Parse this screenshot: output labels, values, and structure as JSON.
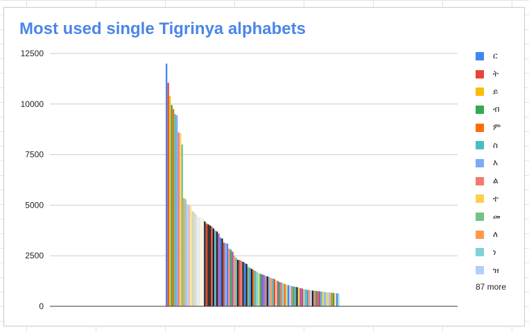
{
  "chart_data": {
    "type": "bar",
    "title": "Most used single Tigrinya alphabets",
    "xlabel": "",
    "ylabel": "",
    "ylim": [
      0,
      12500
    ],
    "yticks": [
      0,
      2500,
      5000,
      7500,
      10000,
      12500
    ],
    "grid": true,
    "legend_position": "right",
    "legend_more_label": "87 more",
    "series": [
      {
        "name": "ር",
        "color": "#4285f4",
        "value": 12000
      },
      {
        "name": "ት",
        "color": "#ea4335",
        "value": 11050
      },
      {
        "name": "ይ",
        "color": "#fbbc04",
        "value": 10400
      },
      {
        "name": "ብ",
        "color": "#34a853",
        "value": 9950
      },
      {
        "name": "ም",
        "color": "#ff6d01",
        "value": 9750
      },
      {
        "name": "ስ",
        "color": "#46bdc6",
        "value": 9500
      },
      {
        "name": "እ",
        "color": "#7baaf7",
        "value": 9450
      },
      {
        "name": "ል",
        "color": "#f07b72",
        "value": 8600
      },
      {
        "name": "ተ",
        "color": "#fcd04f",
        "value": 8550
      },
      {
        "name": "መ",
        "color": "#71c287",
        "value": 8000
      },
      {
        "name": "ለ",
        "color": "#ff994d",
        "value": 5350
      },
      {
        "name": "ነ",
        "color": "#7ed1d7",
        "value": 5300
      },
      {
        "name": "ዝ",
        "color": "#b3cefb",
        "value": 5050
      },
      {
        "name": "",
        "color": "#f7b4ae",
        "value": 5000
      },
      {
        "name": "",
        "color": "#fde49b",
        "value": 4950
      },
      {
        "name": "",
        "color": "#b7e1c3",
        "value": 4700
      },
      {
        "name": "",
        "color": "#ffc8a0",
        "value": 4650
      },
      {
        "name": "",
        "color": "#c3e9ec",
        "value": 4550
      },
      {
        "name": "",
        "color": "#e4eefd",
        "value": 4450
      },
      {
        "name": "",
        "color": "#fbe3e1",
        "value": 4400
      },
      {
        "name": "",
        "color": "#fff4d6",
        "value": 4380
      },
      {
        "name": "",
        "color": "#e6f4ea",
        "value": 4350
      },
      {
        "name": "",
        "color": "#222222",
        "value": 4200
      },
      {
        "name": "",
        "color": "#ea4335",
        "value": 4100
      },
      {
        "name": "",
        "color": "#222222",
        "value": 4050
      },
      {
        "name": "",
        "color": "#222222",
        "value": 4000
      },
      {
        "name": "",
        "color": "#ea4335",
        "value": 3950
      },
      {
        "name": "",
        "color": "#222222",
        "value": 3850
      },
      {
        "name": "",
        "color": "#46bdc6",
        "value": 3750
      },
      {
        "name": "",
        "color": "#222222",
        "value": 3700
      },
      {
        "name": "",
        "color": "#ab47bc",
        "value": 3600
      },
      {
        "name": "",
        "color": "#4285f4",
        "value": 3400
      },
      {
        "name": "",
        "color": "#222222",
        "value": 3350
      },
      {
        "name": "",
        "color": "#ea4335",
        "value": 3150
      },
      {
        "name": "",
        "color": "#7baaf7",
        "value": 3120
      },
      {
        "name": "",
        "color": "#4285f4",
        "value": 3100
      },
      {
        "name": "",
        "color": "#f07b72",
        "value": 2850
      },
      {
        "name": "",
        "color": "#34a853",
        "value": 2800
      },
      {
        "name": "",
        "color": "#ab47bc",
        "value": 2700
      },
      {
        "name": "",
        "color": "#ff994d",
        "value": 2500
      },
      {
        "name": "",
        "color": "#46bdc6",
        "value": 2400
      },
      {
        "name": "",
        "color": "#222222",
        "value": 2300
      },
      {
        "name": "",
        "color": "#ea4335",
        "value": 2280
      },
      {
        "name": "",
        "color": "#f07b72",
        "value": 2250
      },
      {
        "name": "",
        "color": "#222222",
        "value": 2200
      },
      {
        "name": "",
        "color": "#4285f4",
        "value": 2150
      },
      {
        "name": "",
        "color": "#222222",
        "value": 2100
      },
      {
        "name": "",
        "color": "#71c287",
        "value": 1950
      },
      {
        "name": "",
        "color": "#4285f4",
        "value": 1900
      },
      {
        "name": "",
        "color": "#222222",
        "value": 1850
      },
      {
        "name": "",
        "color": "#ff6d01",
        "value": 1800
      },
      {
        "name": "",
        "color": "#46bdc6",
        "value": 1750
      },
      {
        "name": "",
        "color": "#7ed1d7",
        "value": 1700
      },
      {
        "name": "",
        "color": "#c5e17a",
        "value": 1650
      },
      {
        "name": "",
        "color": "#34a853",
        "value": 1600
      },
      {
        "name": "",
        "color": "#ab47bc",
        "value": 1580
      },
      {
        "name": "",
        "color": "#4285f4",
        "value": 1550
      },
      {
        "name": "",
        "color": "#f07b72",
        "value": 1500
      },
      {
        "name": "",
        "color": "#222222",
        "value": 1480
      },
      {
        "name": "",
        "color": "#7baaf7",
        "value": 1450
      },
      {
        "name": "",
        "color": "#ff994d",
        "value": 1400
      },
      {
        "name": "",
        "color": "#46bdc6",
        "value": 1380
      },
      {
        "name": "",
        "color": "#ea4335",
        "value": 1350
      },
      {
        "name": "",
        "color": "#fcd04f",
        "value": 1300
      },
      {
        "name": "",
        "color": "#ab47bc",
        "value": 1250
      },
      {
        "name": "",
        "color": "#34a853",
        "value": 1200
      },
      {
        "name": "",
        "color": "#f07b72",
        "value": 1180
      },
      {
        "name": "",
        "color": "#7ed1d7",
        "value": 1150
      },
      {
        "name": "",
        "color": "#ff6d01",
        "value": 1100
      },
      {
        "name": "",
        "color": "#c5e17a",
        "value": 1080
      },
      {
        "name": "",
        "color": "#4285f4",
        "value": 1050
      },
      {
        "name": "",
        "color": "#b3cefb",
        "value": 1020
      },
      {
        "name": "",
        "color": "#f07b72",
        "value": 1000
      },
      {
        "name": "",
        "color": "#34a853",
        "value": 980
      },
      {
        "name": "",
        "color": "#46bdc6",
        "value": 960
      },
      {
        "name": "",
        "color": "#222222",
        "value": 950
      },
      {
        "name": "",
        "color": "#fcd04f",
        "value": 920
      },
      {
        "name": "",
        "color": "#ab47bc",
        "value": 900
      },
      {
        "name": "",
        "color": "#ea4335",
        "value": 880
      },
      {
        "name": "",
        "color": "#7ed1d7",
        "value": 850
      },
      {
        "name": "",
        "color": "#71c287",
        "value": 830
      },
      {
        "name": "",
        "color": "#4285f4",
        "value": 810
      },
      {
        "name": "",
        "color": "#ff994d",
        "value": 800
      },
      {
        "name": "",
        "color": "#b3cefb",
        "value": 790
      },
      {
        "name": "",
        "color": "#222222",
        "value": 780
      },
      {
        "name": "",
        "color": "#f07b72",
        "value": 770
      },
      {
        "name": "",
        "color": "#34a853",
        "value": 760
      },
      {
        "name": "",
        "color": "#ea4335",
        "value": 750
      },
      {
        "name": "",
        "color": "#ab47bc",
        "value": 740
      },
      {
        "name": "",
        "color": "#46bdc6",
        "value": 730
      },
      {
        "name": "",
        "color": "#fcd04f",
        "value": 720
      },
      {
        "name": "",
        "color": "#7baaf7",
        "value": 710
      },
      {
        "name": "",
        "color": "#c5e17a",
        "value": 700
      },
      {
        "name": "",
        "color": "#f7b4ae",
        "value": 690
      },
      {
        "name": "",
        "color": "#7ed1d7",
        "value": 680
      },
      {
        "name": "",
        "color": "#ff6d01",
        "value": 670
      },
      {
        "name": "",
        "color": "#34a853",
        "value": 660
      },
      {
        "name": "",
        "color": "#fde49b",
        "value": 650
      },
      {
        "name": "",
        "color": "#4285f4",
        "value": 640
      },
      {
        "name": "",
        "color": "#b7e1c3",
        "value": 630
      }
    ]
  }
}
